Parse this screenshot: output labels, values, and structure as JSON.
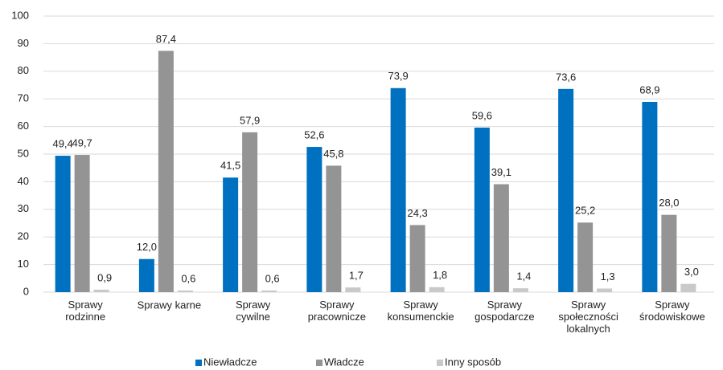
{
  "chart_data": {
    "type": "bar",
    "categories": [
      "Sprawy\nrodzinne",
      "Sprawy karne",
      "Sprawy\ncywilne",
      "Sprawy\npracownicze",
      "Sprawy\nkonsumenckie",
      "Sprawy\ngospodarcze",
      "Sprawy\nspołeczności\nlokalnych",
      "Sprawy\nśrodowiskowe"
    ],
    "series": [
      {
        "name": "Niewładcze",
        "color": "#0070c0",
        "values": [
          49.4,
          12.0,
          41.5,
          52.6,
          73.9,
          59.6,
          73.6,
          68.9
        ],
        "value_labels": [
          "49,4",
          "12,0",
          "41,5",
          "52,6",
          "73,9",
          "59,6",
          "73,6",
          "68,9"
        ]
      },
      {
        "name": "Władcze",
        "color": "#949494",
        "values": [
          49.7,
          87.4,
          57.9,
          45.8,
          24.3,
          39.1,
          25.2,
          28.0
        ],
        "value_labels": [
          "49,7",
          "87,4",
          "57,9",
          "45,8",
          "24,3",
          "39,1",
          "25,2",
          "28,0"
        ]
      },
      {
        "name": "Inny sposób",
        "color": "#c9c9c9",
        "values": [
          0.9,
          0.6,
          0.6,
          1.7,
          1.8,
          1.4,
          1.3,
          3.0
        ],
        "value_labels": [
          "0,9",
          "0,6",
          "0,6",
          "1,7",
          "1,8",
          "1,4",
          "1,3",
          "3,0"
        ]
      }
    ],
    "ylim": [
      0,
      100
    ],
    "yticks": [
      0,
      10,
      20,
      30,
      40,
      50,
      60,
      70,
      80,
      90,
      100
    ],
    "grid": true,
    "legend": "bottom"
  }
}
